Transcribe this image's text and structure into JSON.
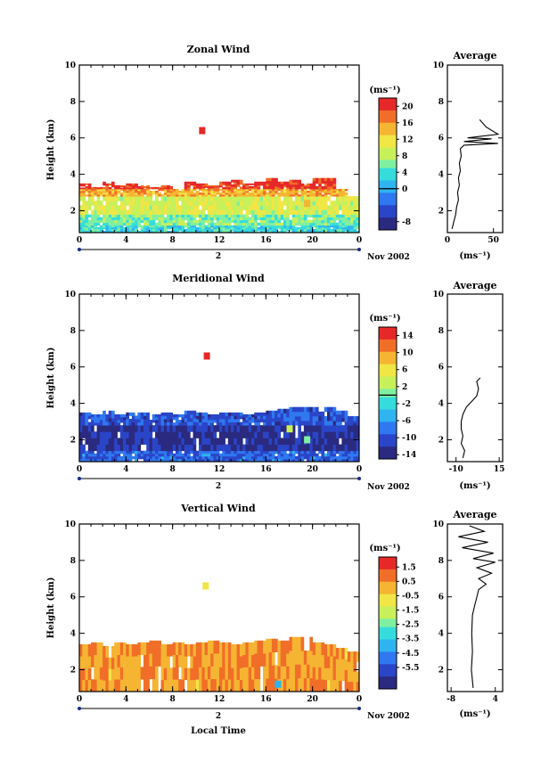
{
  "figure": {
    "date_label": "Nov 2002",
    "day_label": "2",
    "xlabel": "Local Time"
  },
  "colormap": [
    "#2a2a80",
    "#2a45c8",
    "#2f78f0",
    "#2fb4f0",
    "#36dcdc",
    "#7ff0a0",
    "#c8f05a",
    "#f0e646",
    "#f5b432",
    "#f06e28",
    "#e62828"
  ],
  "chart_data": [
    {
      "type": "heatmap",
      "title": "Zonal Wind",
      "xlabel": "",
      "ylabel": "Height (km)",
      "unit": "(ms⁻¹)",
      "x_ticks": [
        "0",
        "4",
        "8",
        "12",
        "16",
        "20",
        "0"
      ],
      "xlim": [
        0,
        24
      ],
      "y_ticks": [
        "2",
        "4",
        "6",
        "8",
        "10"
      ],
      "ylim": [
        0.8,
        10
      ],
      "colorbar": {
        "min": -10,
        "max": 22,
        "ticks": [
          "20",
          "16",
          "12",
          "8",
          "4",
          "0",
          "-8"
        ],
        "zero_line": 0
      },
      "top_height_km": [
        3.5,
        3.3,
        3.6,
        3.4,
        3.5,
        3.4,
        3.3,
        3.4,
        3.2,
        3.6,
        3.5,
        3.4,
        3.6,
        3.7,
        3.5,
        3.6,
        3.8,
        3.6,
        3.7,
        3.5,
        4.3,
        4.6,
        3.2,
        2.8
      ],
      "layers": [
        {
          "range_km": [
            0.8,
            1.2
          ],
          "value": 3
        },
        {
          "range_km": [
            1.2,
            1.8
          ],
          "value": 6
        },
        {
          "range_km": [
            1.8,
            2.8
          ],
          "value": 10
        },
        {
          "range_km": [
            2.8,
            3.2
          ],
          "value": 15
        },
        {
          "range_km": [
            3.2,
            3.8
          ],
          "value": 20
        }
      ],
      "patches": [
        {
          "x": 10.5,
          "y": 6.4,
          "value": 22
        },
        {
          "x": 19.5,
          "y": 2.4,
          "value": 14
        }
      ],
      "profile": {
        "title": "Average",
        "xlabel": "(ms⁻¹)",
        "x_ticks": [
          "0",
          "50"
        ],
        "xlim": [
          0,
          60
        ],
        "y_ticks": [
          "2",
          "4",
          "6",
          "8",
          "10"
        ],
        "ylim": [
          0.8,
          10
        ],
        "points": [
          [
            5,
            1.0
          ],
          [
            7,
            1.4
          ],
          [
            9,
            1.8
          ],
          [
            10,
            2.2
          ],
          [
            12,
            2.6
          ],
          [
            11,
            3.0
          ],
          [
            13,
            3.4
          ],
          [
            12,
            3.8
          ],
          [
            14,
            4.2
          ],
          [
            13,
            4.6
          ],
          [
            15,
            5.0
          ],
          [
            14,
            5.4
          ],
          [
            18,
            5.6
          ],
          [
            55,
            5.7
          ],
          [
            18,
            5.8
          ],
          [
            48,
            5.95
          ],
          [
            22,
            6.0
          ],
          [
            55,
            6.2
          ],
          [
            42,
            6.6
          ],
          [
            35,
            7.0
          ]
        ]
      }
    },
    {
      "type": "heatmap",
      "title": "Meridional Wind",
      "xlabel": "",
      "ylabel": "Height (km)",
      "unit": "(ms⁻¹)",
      "x_ticks": [
        "0",
        "4",
        "8",
        "12",
        "16",
        "20",
        "0"
      ],
      "xlim": [
        0,
        24
      ],
      "y_ticks": [
        "2",
        "4",
        "6",
        "8",
        "10"
      ],
      "ylim": [
        0.8,
        10
      ],
      "colorbar": {
        "min": -15,
        "max": 16,
        "ticks": [
          "14",
          "10",
          "6",
          "2",
          "-2",
          "-6",
          "-10",
          "-14"
        ],
        "zero_line": 0
      },
      "top_height_km": [
        3.5,
        3.4,
        3.6,
        3.4,
        3.5,
        3.5,
        3.4,
        3.5,
        3.4,
        3.6,
        3.5,
        3.4,
        3.5,
        3.5,
        3.4,
        3.5,
        3.6,
        3.7,
        4.6,
        4.9,
        4.2,
        3.8,
        3.6,
        3.3
      ],
      "layers": [
        {
          "range_km": [
            0.8,
            1.4
          ],
          "value": -9
        },
        {
          "range_km": [
            1.4,
            2.8
          ],
          "value": -13
        },
        {
          "range_km": [
            2.8,
            3.8
          ],
          "value": -10
        }
      ],
      "patches": [
        {
          "x": 10.9,
          "y": 6.6,
          "value": 15
        },
        {
          "x": 18.0,
          "y": 2.6,
          "value": 3
        },
        {
          "x": 19.5,
          "y": 2.0,
          "value": 0
        }
      ],
      "profile": {
        "title": "Average",
        "xlabel": "(ms⁻¹)",
        "x_ticks": [
          "-10",
          "15"
        ],
        "xlim": [
          -15,
          17
        ],
        "y_ticks": [
          "2",
          "4",
          "6",
          "8",
          "10"
        ],
        "ylim": [
          0.8,
          10
        ],
        "points": [
          [
            -6,
            1.0
          ],
          [
            -5,
            1.4
          ],
          [
            -7,
            1.8
          ],
          [
            -6,
            2.2
          ],
          [
            -7,
            2.6
          ],
          [
            -7,
            3.0
          ],
          [
            -6,
            3.4
          ],
          [
            -4,
            3.8
          ],
          [
            -1,
            4.1
          ],
          [
            2,
            4.4
          ],
          [
            3,
            4.8
          ],
          [
            2,
            5.2
          ],
          [
            4,
            5.4
          ]
        ]
      }
    },
    {
      "type": "heatmap",
      "title": "Vertical Wind",
      "xlabel": "Local Time",
      "ylabel": "Height (km)",
      "unit": "(ms⁻¹)",
      "x_ticks": [
        "0",
        "4",
        "8",
        "12",
        "16",
        "20",
        "0"
      ],
      "xlim": [
        0,
        24
      ],
      "y_ticks": [
        "2",
        "4",
        "6",
        "8",
        "10"
      ],
      "ylim": [
        0.8,
        10
      ],
      "colorbar": {
        "min": -7,
        "max": 2.2,
        "ticks": [
          "1.5",
          "0.5",
          "-0.5",
          "-1.5",
          "-2.5",
          "-3.5",
          "-4.5",
          "-5.5"
        ],
        "zero_line": null
      },
      "top_height_km": [
        3.4,
        3.5,
        3.3,
        3.5,
        3.4,
        3.5,
        3.6,
        3.4,
        3.5,
        3.4,
        3.5,
        3.6,
        3.5,
        3.4,
        3.5,
        3.6,
        3.7,
        3.6,
        4.2,
        3.8,
        3.5,
        3.4,
        3.2,
        3.0
      ],
      "layers": [
        {
          "range_km": [
            0.8,
            3.8
          ],
          "value": 0.5
        }
      ],
      "patches": [
        {
          "x": 10.8,
          "y": 6.6,
          "value": -0.5
        },
        {
          "x": 17.0,
          "y": 1.2,
          "value": -4.0
        }
      ],
      "profile": {
        "title": "Average",
        "xlabel": "(ms⁻¹)",
        "x_ticks": [
          "-8",
          "4"
        ],
        "xlim": [
          -9,
          6
        ],
        "y_ticks": [
          "2",
          "4",
          "6",
          "8",
          "10"
        ],
        "ylim": [
          0.8,
          10
        ],
        "points": [
          [
            -2,
            1.0
          ],
          [
            -2.5,
            2.0
          ],
          [
            -2.2,
            3.0
          ],
          [
            -2.4,
            4.0
          ],
          [
            -2.2,
            5.0
          ],
          [
            -1.5,
            5.6
          ],
          [
            -1.0,
            6.0
          ],
          [
            -0.5,
            6.4
          ],
          [
            1.5,
            6.7
          ],
          [
            -0.5,
            7.0
          ],
          [
            3,
            7.3
          ],
          [
            -1,
            7.6
          ],
          [
            4,
            7.9
          ],
          [
            -2,
            8.1
          ],
          [
            3.5,
            8.4
          ],
          [
            -5,
            8.7
          ],
          [
            2,
            9.0
          ],
          [
            -6,
            9.3
          ],
          [
            1,
            9.6
          ],
          [
            -3,
            9.9
          ]
        ]
      }
    }
  ]
}
